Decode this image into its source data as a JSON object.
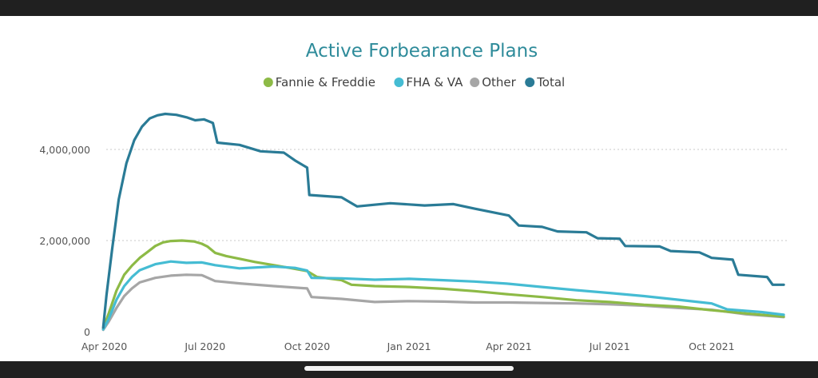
{
  "colors": {
    "fannie_freddie": "#8dba46",
    "fha_va": "#45bcd3",
    "other": "#a6a6a6",
    "total": "#2a7b96",
    "title": "#2e8b9a"
  },
  "chart_data": {
    "type": "line",
    "title": "Active Forbearance Plans",
    "xlabel": "",
    "ylabel": "",
    "legend_position": "top",
    "grid": true,
    "x_ticks": [
      "Apr 2020",
      "Jul 2020",
      "Oct 2020",
      "Jan 2021",
      "Apr 2021",
      "Jul 2021",
      "Oct 2021"
    ],
    "y_ticks": [
      "0",
      "2,000,000",
      "4,000,000"
    ],
    "ylim": [
      0,
      5000000
    ],
    "xlim": [
      "2020-03-28",
      "2021-12-10"
    ],
    "series": [
      {
        "name": "Fannie & Freddie",
        "color_key": "fannie_freddie",
        "points": [
          [
            "2020-03-31",
            70000
          ],
          [
            "2020-04-05",
            400000
          ],
          [
            "2020-04-12",
            900000
          ],
          [
            "2020-04-19",
            1250000
          ],
          [
            "2020-04-26",
            1450000
          ],
          [
            "2020-05-03",
            1620000
          ],
          [
            "2020-05-10",
            1750000
          ],
          [
            "2020-05-17",
            1880000
          ],
          [
            "2020-05-24",
            1960000
          ],
          [
            "2020-05-31",
            1990000
          ],
          [
            "2020-06-10",
            2000000
          ],
          [
            "2020-06-21",
            1980000
          ],
          [
            "2020-06-28",
            1930000
          ],
          [
            "2020-07-03",
            1870000
          ],
          [
            "2020-07-10",
            1730000
          ],
          [
            "2020-07-20",
            1660000
          ],
          [
            "2020-08-01",
            1600000
          ],
          [
            "2020-08-15",
            1530000
          ],
          [
            "2020-09-01",
            1460000
          ],
          [
            "2020-09-15",
            1400000
          ],
          [
            "2020-10-01",
            1330000
          ],
          [
            "2020-10-10",
            1200000
          ],
          [
            "2020-11-01",
            1130000
          ],
          [
            "2020-11-10",
            1030000
          ],
          [
            "2020-12-01",
            1000000
          ],
          [
            "2021-01-01",
            980000
          ],
          [
            "2021-02-01",
            940000
          ],
          [
            "2021-03-01",
            890000
          ],
          [
            "2021-04-01",
            820000
          ],
          [
            "2021-05-01",
            760000
          ],
          [
            "2021-06-01",
            690000
          ],
          [
            "2021-07-01",
            650000
          ],
          [
            "2021-08-01",
            590000
          ],
          [
            "2021-09-01",
            550000
          ],
          [
            "2021-10-01",
            470000
          ],
          [
            "2021-11-01",
            400000
          ],
          [
            "2021-12-05",
            330000
          ]
        ]
      },
      {
        "name": "FHA & VA",
        "color_key": "fha_va",
        "points": [
          [
            "2020-03-31",
            50000
          ],
          [
            "2020-04-05",
            280000
          ],
          [
            "2020-04-12",
            700000
          ],
          [
            "2020-04-19",
            1000000
          ],
          [
            "2020-04-26",
            1200000
          ],
          [
            "2020-05-03",
            1350000
          ],
          [
            "2020-05-17",
            1480000
          ],
          [
            "2020-05-31",
            1540000
          ],
          [
            "2020-06-14",
            1510000
          ],
          [
            "2020-06-28",
            1520000
          ],
          [
            "2020-07-10",
            1460000
          ],
          [
            "2020-08-01",
            1390000
          ],
          [
            "2020-09-01",
            1430000
          ],
          [
            "2020-09-20",
            1400000
          ],
          [
            "2020-10-01",
            1340000
          ],
          [
            "2020-10-05",
            1180000
          ],
          [
            "2020-11-01",
            1170000
          ],
          [
            "2020-12-01",
            1140000
          ],
          [
            "2021-01-01",
            1160000
          ],
          [
            "2021-02-01",
            1130000
          ],
          [
            "2021-03-01",
            1100000
          ],
          [
            "2021-04-01",
            1050000
          ],
          [
            "2021-05-01",
            980000
          ],
          [
            "2021-06-01",
            910000
          ],
          [
            "2021-07-01",
            850000
          ],
          [
            "2021-08-01",
            780000
          ],
          [
            "2021-09-01",
            700000
          ],
          [
            "2021-10-01",
            620000
          ],
          [
            "2021-10-15",
            490000
          ],
          [
            "2021-11-15",
            430000
          ],
          [
            "2021-12-05",
            370000
          ]
        ]
      },
      {
        "name": "Other",
        "color_key": "other",
        "points": [
          [
            "2020-03-31",
            40000
          ],
          [
            "2020-04-05",
            220000
          ],
          [
            "2020-04-12",
            520000
          ],
          [
            "2020-04-19",
            780000
          ],
          [
            "2020-04-26",
            950000
          ],
          [
            "2020-05-03",
            1080000
          ],
          [
            "2020-05-17",
            1180000
          ],
          [
            "2020-05-31",
            1230000
          ],
          [
            "2020-06-14",
            1250000
          ],
          [
            "2020-06-28",
            1240000
          ],
          [
            "2020-07-10",
            1110000
          ],
          [
            "2020-08-01",
            1060000
          ],
          [
            "2020-09-01",
            1000000
          ],
          [
            "2020-10-01",
            950000
          ],
          [
            "2020-10-05",
            760000
          ],
          [
            "2020-11-01",
            720000
          ],
          [
            "2020-12-01",
            650000
          ],
          [
            "2021-01-01",
            670000
          ],
          [
            "2021-02-01",
            660000
          ],
          [
            "2021-03-01",
            640000
          ],
          [
            "2021-04-01",
            640000
          ],
          [
            "2021-05-01",
            630000
          ],
          [
            "2021-06-01",
            620000
          ],
          [
            "2021-07-01",
            600000
          ],
          [
            "2021-08-01",
            570000
          ],
          [
            "2021-09-01",
            520000
          ],
          [
            "2021-10-01",
            480000
          ],
          [
            "2021-11-01",
            380000
          ],
          [
            "2021-12-05",
            320000
          ]
        ]
      },
      {
        "name": "Total",
        "color_key": "total",
        "points": [
          [
            "2020-03-31",
            90000
          ],
          [
            "2020-04-03",
            800000
          ],
          [
            "2020-04-08",
            1800000
          ],
          [
            "2020-04-14",
            2900000
          ],
          [
            "2020-04-21",
            3700000
          ],
          [
            "2020-04-28",
            4200000
          ],
          [
            "2020-05-05",
            4500000
          ],
          [
            "2020-05-12",
            4680000
          ],
          [
            "2020-05-19",
            4750000
          ],
          [
            "2020-05-26",
            4780000
          ],
          [
            "2020-06-05",
            4760000
          ],
          [
            "2020-06-15",
            4700000
          ],
          [
            "2020-06-22",
            4640000
          ],
          [
            "2020-06-30",
            4660000
          ],
          [
            "2020-07-08",
            4580000
          ],
          [
            "2020-07-12",
            4150000
          ],
          [
            "2020-08-01",
            4100000
          ],
          [
            "2020-08-20",
            3960000
          ],
          [
            "2020-09-10",
            3930000
          ],
          [
            "2020-09-20",
            3760000
          ],
          [
            "2020-10-01",
            3600000
          ],
          [
            "2020-10-03",
            3000000
          ],
          [
            "2020-11-01",
            2950000
          ],
          [
            "2020-11-15",
            2750000
          ],
          [
            "2020-12-15",
            2820000
          ],
          [
            "2021-01-15",
            2770000
          ],
          [
            "2021-02-10",
            2800000
          ],
          [
            "2021-03-01",
            2700000
          ],
          [
            "2021-04-01",
            2550000
          ],
          [
            "2021-04-10",
            2330000
          ],
          [
            "2021-05-01",
            2300000
          ],
          [
            "2021-05-15",
            2200000
          ],
          [
            "2021-06-10",
            2180000
          ],
          [
            "2021-06-20",
            2050000
          ],
          [
            "2021-07-10",
            2040000
          ],
          [
            "2021-07-15",
            1880000
          ],
          [
            "2021-08-15",
            1870000
          ],
          [
            "2021-08-25",
            1770000
          ],
          [
            "2021-09-20",
            1740000
          ],
          [
            "2021-10-01",
            1620000
          ],
          [
            "2021-10-20",
            1580000
          ],
          [
            "2021-10-25",
            1250000
          ],
          [
            "2021-11-20",
            1200000
          ],
          [
            "2021-11-25",
            1030000
          ],
          [
            "2021-12-05",
            1030000
          ]
        ]
      }
    ]
  }
}
